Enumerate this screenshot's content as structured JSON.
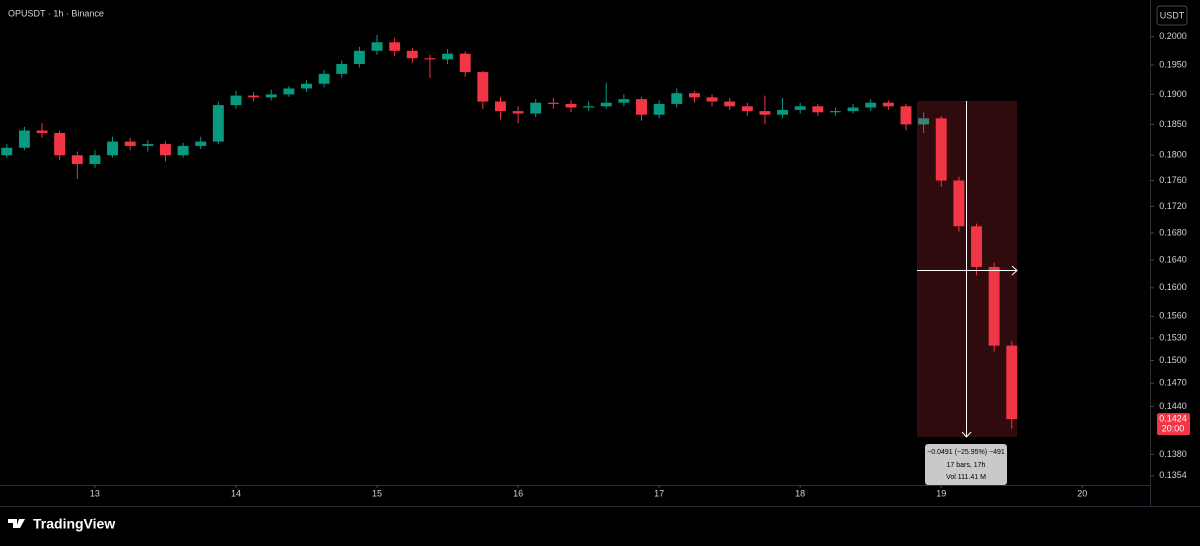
{
  "chart_data": {
    "type": "candlestick",
    "title": "OPUSDT · 1h · Binance",
    "log_scale": true,
    "up_color": "#089981",
    "down_color": "#f23645",
    "x": [
      12.375,
      12.5,
      12.625,
      12.75,
      12.875,
      13.0,
      13.125,
      13.25,
      13.375,
      13.5,
      13.625,
      13.75,
      13.875,
      14.0,
      14.125,
      14.25,
      14.375,
      14.5,
      14.625,
      14.75,
      14.875,
      15.0,
      15.125,
      15.25,
      15.375,
      15.5,
      15.625,
      15.75,
      15.875,
      16.0,
      16.125,
      16.25,
      16.375,
      16.5,
      16.625,
      16.75,
      16.875,
      17.0,
      17.125,
      17.25,
      17.375,
      17.5,
      17.625,
      17.75,
      17.875,
      18.0,
      18.125,
      18.25,
      18.375,
      18.5,
      18.625,
      18.75,
      18.875,
      19.0,
      19.125,
      19.25,
      19.375,
      19.5
    ],
    "open": [
      0.18,
      0.1812,
      0.184,
      0.1836,
      0.18,
      0.1786,
      0.18,
      0.1822,
      0.1815,
      0.1818,
      0.18,
      0.1815,
      0.1822,
      0.1882,
      0.1898,
      0.1895,
      0.19,
      0.191,
      0.1918,
      0.1935,
      0.1952,
      0.1975,
      0.199,
      0.1975,
      0.1962,
      0.196,
      0.197,
      0.1938,
      0.1888,
      0.1872,
      0.1868,
      0.1886,
      0.1884,
      0.1878,
      0.188,
      0.1886,
      0.1892,
      0.1866,
      0.1884,
      0.1902,
      0.1895,
      0.1888,
      0.188,
      0.1872,
      0.1866,
      0.1874,
      0.188,
      0.187,
      0.1872,
      0.1878,
      0.1886,
      0.188,
      0.185,
      0.186,
      0.176,
      0.169,
      0.163,
      0.152
    ],
    "high": [
      0.1818,
      0.1846,
      0.1852,
      0.184,
      0.1806,
      0.1808,
      0.183,
      0.1828,
      0.1824,
      0.1822,
      0.182,
      0.183,
      0.1888,
      0.1906,
      0.1904,
      0.1908,
      0.1914,
      0.1924,
      0.1942,
      0.1958,
      0.1982,
      0.2003,
      0.1998,
      0.198,
      0.1968,
      0.1978,
      0.1974,
      0.194,
      0.1896,
      0.188,
      0.1892,
      0.1894,
      0.189,
      0.1888,
      0.192,
      0.19,
      0.1896,
      0.189,
      0.191,
      0.1906,
      0.19,
      0.1894,
      0.1886,
      0.1898,
      0.1894,
      0.1886,
      0.1884,
      0.1878,
      0.1884,
      0.1892,
      0.189,
      0.1884,
      0.187,
      0.1864,
      0.1766,
      0.1694,
      0.1636,
      0.1526
    ],
    "low": [
      0.1796,
      0.1808,
      0.1828,
      0.1792,
      0.1762,
      0.178,
      0.1796,
      0.1808,
      0.1806,
      0.179,
      0.1796,
      0.181,
      0.1818,
      0.1876,
      0.1888,
      0.189,
      0.1896,
      0.1904,
      0.1912,
      0.1928,
      0.1946,
      0.1968,
      0.1966,
      0.1954,
      0.1928,
      0.1952,
      0.193,
      0.1876,
      0.1858,
      0.1852,
      0.1862,
      0.1876,
      0.187,
      0.1872,
      0.1876,
      0.188,
      0.1856,
      0.186,
      0.1878,
      0.1886,
      0.188,
      0.1874,
      0.1864,
      0.185,
      0.186,
      0.1868,
      0.1864,
      0.1864,
      0.1868,
      0.1872,
      0.1874,
      0.184,
      0.1836,
      0.175,
      0.1682,
      0.1618,
      0.1512,
      0.1412
    ],
    "close": [
      0.1812,
      0.184,
      0.1836,
      0.18,
      0.1786,
      0.18,
      0.1822,
      0.1815,
      0.1818,
      0.18,
      0.1815,
      0.1822,
      0.1882,
      0.1898,
      0.1895,
      0.19,
      0.191,
      0.1918,
      0.1935,
      0.1952,
      0.1975,
      0.199,
      0.1975,
      0.1962,
      0.196,
      0.197,
      0.1938,
      0.1888,
      0.1872,
      0.1868,
      0.1886,
      0.1884,
      0.1878,
      0.188,
      0.1886,
      0.1892,
      0.1866,
      0.1884,
      0.1902,
      0.1895,
      0.1888,
      0.188,
      0.1872,
      0.1866,
      0.1874,
      0.188,
      0.187,
      0.1872,
      0.1878,
      0.1886,
      0.188,
      0.185,
      0.186,
      0.176,
      0.169,
      0.163,
      0.152,
      0.1424
    ],
    "xlim": [
      12.327,
      20.48
    ],
    "xticks": [
      13,
      14,
      15,
      16,
      17,
      18,
      19,
      20
    ],
    "ylim": [
      0.1343,
      0.2057
    ],
    "yticks": [
      {
        "value": 0.2,
        "label": "0.2000"
      },
      {
        "value": 0.195,
        "label": "0.1950"
      },
      {
        "value": 0.19,
        "label": "0.1900"
      },
      {
        "value": 0.185,
        "label": "0.1850"
      },
      {
        "value": 0.18,
        "label": "0.1800"
      },
      {
        "value": 0.176,
        "label": "0.1760"
      },
      {
        "value": 0.172,
        "label": "0.1720"
      },
      {
        "value": 0.168,
        "label": "0.1680"
      },
      {
        "value": 0.164,
        "label": "0.1640"
      },
      {
        "value": 0.16,
        "label": "0.1600"
      },
      {
        "value": 0.156,
        "label": "0.1560"
      },
      {
        "value": 0.153,
        "label": "0.1530"
      },
      {
        "value": 0.15,
        "label": "0.1500"
      },
      {
        "value": 0.147,
        "label": "0.1470"
      },
      {
        "value": 0.144,
        "label": "0.1440"
      },
      {
        "value": 0.138,
        "label": "0.1380"
      },
      0.1354
    ],
    "countdown": "20:00",
    "measure": {
      "change": "−0.0491 (−25.95%) −491",
      "bars": "17 bars, 17h",
      "volume": "Vol 111.41 M"
    }
  },
  "ui": {
    "currency_button": "USDT",
    "brand": "TradingView"
  }
}
